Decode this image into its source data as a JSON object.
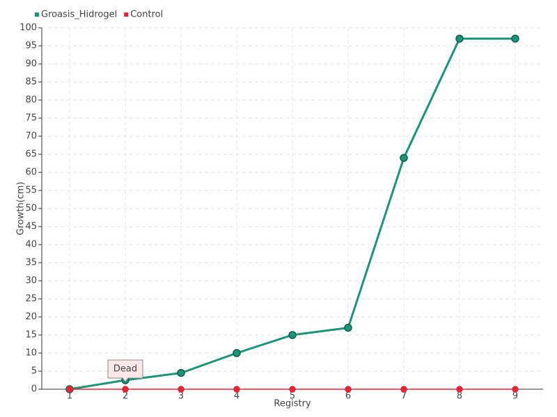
{
  "chart_data": {
    "type": "line",
    "x_label": "Registry",
    "y_label": "Growth(cm)",
    "categories": [
      "1",
      "2",
      "3",
      "4",
      "5",
      "6",
      "7",
      "8",
      "9"
    ],
    "series": [
      {
        "name": "Groasis_Hidrogel",
        "color": "#1b9478",
        "values": [
          0,
          2.5,
          4.5,
          10,
          15,
          17,
          64,
          97,
          97
        ]
      },
      {
        "name": "Control",
        "color": "#e32636",
        "values": [
          0,
          0,
          0,
          0,
          0,
          0,
          0,
          0,
          0
        ]
      }
    ],
    "annotations": [
      {
        "text": "Dead",
        "x": "2"
      }
    ],
    "ylim": [
      0,
      100
    ],
    "yticks": [
      0,
      5,
      10,
      15,
      20,
      25,
      30,
      35,
      40,
      45,
      50,
      55,
      60,
      65,
      70,
      75,
      80,
      85,
      90,
      95,
      100
    ],
    "grid": true,
    "legend": "top-left"
  }
}
